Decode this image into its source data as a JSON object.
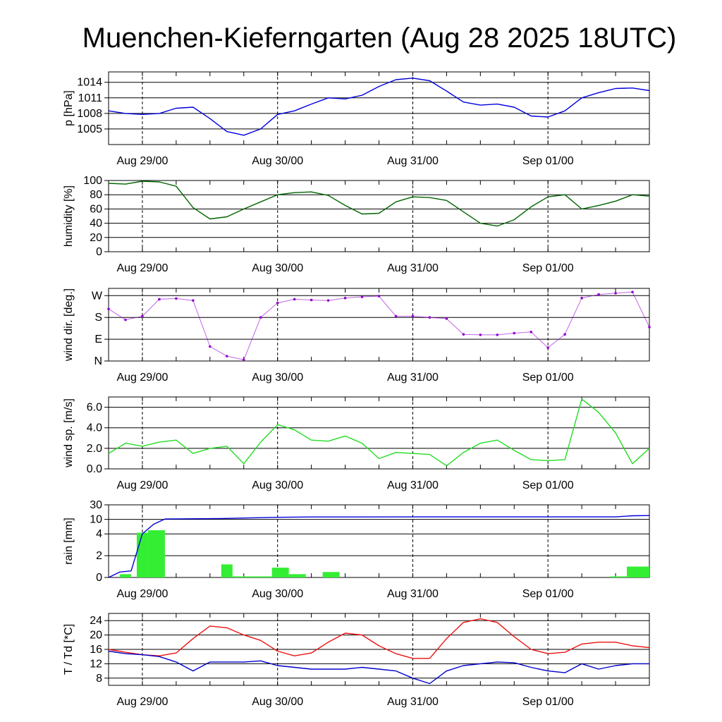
{
  "title": "Muenchen-Kieferngarten (Aug 28 2025 18UTC)",
  "x_axis": {
    "type": "time",
    "start": "Aug 28 18:00",
    "end": "Sep 01 18:00",
    "tick_labels": [
      "Aug 29/00",
      "Aug 30/00",
      "Aug 31/00",
      "Sep 01/00"
    ],
    "tick_times": [
      "Aug 29 00:00",
      "Aug 30 00:00",
      "Aug 31 00:00",
      "Sep 01 00:00"
    ]
  },
  "colors": {
    "pressure": "#0000dd",
    "humidity": "#006400",
    "wind_dir": "#9400d3",
    "wind_speed": "#22dd22",
    "rain_total": "#0000dd",
    "rain_bars": "#33ee33",
    "temperature": "#ee1111",
    "dewpoint": "#0000cc",
    "grid": "#000000"
  },
  "chart_data": [
    {
      "type": "line",
      "ylabel": "p [hPa]",
      "ylim": [
        1002,
        1016
      ],
      "yticks": [
        1005,
        1008,
        1011,
        1014
      ],
      "ytick_labels": [
        "1005",
        "1008",
        "1011",
        "1014"
      ],
      "series": [
        {
          "key": "pressure",
          "x": [
            "Aug 28 18:00",
            "Aug 28 21:00",
            "Aug 29 00:00",
            "Aug 29 03:00",
            "Aug 29 06:00",
            "Aug 29 09:00",
            "Aug 29 12:00",
            "Aug 29 15:00",
            "Aug 29 18:00",
            "Aug 29 21:00",
            "Aug 30 00:00",
            "Aug 30 03:00",
            "Aug 30 06:00",
            "Aug 30 09:00",
            "Aug 30 12:00",
            "Aug 30 15:00",
            "Aug 30 18:00",
            "Aug 30 21:00",
            "Aug 31 00:00",
            "Aug 31 03:00",
            "Aug 31 06:00",
            "Aug 31 09:00",
            "Aug 31 12:00",
            "Aug 31 15:00",
            "Aug 31 18:00",
            "Aug 31 21:00",
            "Sep 01 00:00",
            "Sep 01 03:00",
            "Sep 01 06:00",
            "Sep 01 09:00",
            "Sep 01 12:00",
            "Sep 01 15:00",
            "Sep 01 18:00"
          ],
          "y": [
            1008.5,
            1008.0,
            1007.8,
            1008.0,
            1009.0,
            1009.2,
            1007.0,
            1004.5,
            1003.8,
            1005.0,
            1007.8,
            1008.5,
            1009.8,
            1011.0,
            1010.8,
            1011.5,
            1013.2,
            1014.5,
            1014.8,
            1014.3,
            1012.3,
            1010.2,
            1009.6,
            1009.8,
            1009.2,
            1007.5,
            1007.3,
            1008.5,
            1011.0,
            1012.0,
            1012.8,
            1012.9,
            1012.4
          ]
        }
      ]
    },
    {
      "type": "line",
      "ylabel": "humidity [%]",
      "ylim": [
        0,
        100
      ],
      "yticks": [
        0,
        20,
        40,
        60,
        80,
        100
      ],
      "ytick_labels": [
        "0",
        "20",
        "40",
        "60",
        "80",
        "100"
      ],
      "series": [
        {
          "key": "humidity",
          "x": [
            "Aug 28 18:00",
            "Aug 28 21:00",
            "Aug 29 00:00",
            "Aug 29 03:00",
            "Aug 29 06:00",
            "Aug 29 09:00",
            "Aug 29 12:00",
            "Aug 29 15:00",
            "Aug 29 18:00",
            "Aug 29 21:00",
            "Aug 30 00:00",
            "Aug 30 03:00",
            "Aug 30 06:00",
            "Aug 30 09:00",
            "Aug 30 12:00",
            "Aug 30 15:00",
            "Aug 30 18:00",
            "Aug 30 21:00",
            "Aug 31 00:00",
            "Aug 31 03:00",
            "Aug 31 06:00",
            "Aug 31 09:00",
            "Aug 31 12:00",
            "Aug 31 15:00",
            "Aug 31 18:00",
            "Aug 31 21:00",
            "Sep 01 00:00",
            "Sep 01 03:00",
            "Sep 01 06:00",
            "Sep 01 09:00",
            "Sep 01 12:00",
            "Sep 01 15:00",
            "Sep 01 18:00"
          ],
          "y": [
            96,
            95,
            99,
            98,
            92,
            62,
            46,
            49,
            60,
            70,
            80,
            83,
            84,
            79,
            65,
            53,
            54,
            70,
            77,
            76,
            72,
            56,
            40,
            36,
            45,
            63,
            77,
            80,
            60,
            65,
            71,
            80,
            78
          ]
        }
      ]
    },
    {
      "type": "scatter",
      "ylabel": "wind dir. [deg.]",
      "ylim": [
        0,
        300
      ],
      "yticks": [
        0,
        90,
        180,
        270
      ],
      "ytick_labels": [
        "N",
        "E",
        "S",
        "W"
      ],
      "series": [
        {
          "key": "wind_dir",
          "x": [
            "Aug 28 18:00",
            "Aug 28 21:00",
            "Aug 29 00:00",
            "Aug 29 03:00",
            "Aug 29 06:00",
            "Aug 29 09:00",
            "Aug 29 12:00",
            "Aug 29 15:00",
            "Aug 29 18:00",
            "Aug 29 21:00",
            "Aug 30 00:00",
            "Aug 30 03:00",
            "Aug 30 06:00",
            "Aug 30 09:00",
            "Aug 30 12:00",
            "Aug 30 15:00",
            "Aug 30 18:00",
            "Aug 30 21:00",
            "Aug 31 00:00",
            "Aug 31 03:00",
            "Aug 31 06:00",
            "Aug 31 09:00",
            "Aug 31 12:00",
            "Aug 31 15:00",
            "Aug 31 18:00",
            "Aug 31 21:00",
            "Sep 01 00:00",
            "Sep 01 03:00",
            "Sep 01 06:00",
            "Sep 01 09:00",
            "Sep 01 12:00",
            "Sep 01 15:00",
            "Sep 01 18:00"
          ],
          "y": [
            215,
            170,
            185,
            255,
            258,
            250,
            60,
            20,
            5,
            180,
            240,
            255,
            252,
            250,
            260,
            265,
            268,
            185,
            185,
            180,
            175,
            110,
            108,
            108,
            115,
            120,
            55,
            110,
            260,
            275,
            280,
            285,
            140
          ]
        }
      ]
    },
    {
      "type": "line",
      "ylabel": "wind sp. [m/s]",
      "ylim": [
        0,
        7
      ],
      "yticks": [
        0,
        2,
        4,
        6
      ],
      "ytick_labels": [
        "0.0",
        "2.0",
        "4.0",
        "6.0"
      ],
      "series": [
        {
          "key": "wind_speed",
          "x": [
            "Aug 28 18:00",
            "Aug 28 21:00",
            "Aug 29 00:00",
            "Aug 29 03:00",
            "Aug 29 06:00",
            "Aug 29 09:00",
            "Aug 29 12:00",
            "Aug 29 15:00",
            "Aug 29 18:00",
            "Aug 29 21:00",
            "Aug 30 00:00",
            "Aug 30 03:00",
            "Aug 30 06:00",
            "Aug 30 09:00",
            "Aug 30 12:00",
            "Aug 30 15:00",
            "Aug 30 18:00",
            "Aug 30 21:00",
            "Aug 31 00:00",
            "Aug 31 03:00",
            "Aug 31 06:00",
            "Aug 31 09:00",
            "Aug 31 12:00",
            "Aug 31 15:00",
            "Aug 31 18:00",
            "Aug 31 21:00",
            "Sep 01 00:00",
            "Sep 01 03:00",
            "Sep 01 06:00",
            "Sep 01 09:00",
            "Sep 01 12:00",
            "Sep 01 15:00",
            "Sep 01 18:00"
          ],
          "y": [
            1.5,
            2.5,
            2.2,
            2.6,
            2.8,
            1.5,
            2.0,
            2.2,
            0.5,
            2.6,
            4.3,
            3.8,
            2.8,
            2.7,
            3.2,
            2.5,
            1.0,
            1.6,
            1.5,
            1.4,
            0.3,
            1.6,
            2.5,
            2.8,
            1.8,
            0.9,
            0.8,
            0.9,
            6.8,
            5.5,
            3.5,
            0.5,
            2.0
          ]
        }
      ]
    },
    {
      "type": "bar",
      "ylabel": "rain [mm]",
      "ylim": [
        0,
        30
      ],
      "yticks": [
        0,
        2,
        4,
        10,
        30
      ],
      "ytick_labels": [
        "0",
        "2",
        "4",
        "10",
        "30"
      ],
      "bars": {
        "key": "rain_bars",
        "start": [
          "Aug 28 20:00",
          "Aug 28 23:00",
          "Aug 29 01:00",
          "Aug 29 14:00",
          "Aug 29 16:00",
          "Aug 29 23:00",
          "Aug 30 02:00",
          "Aug 30 08:00",
          "Sep 01 11:00",
          "Sep 01 14:00"
        ],
        "end": [
          "Aug 28 22:00",
          "Aug 29 01:00",
          "Aug 29 04:00",
          "Aug 29 16:00",
          "Aug 29 23:00",
          "Aug 30 02:00",
          "Aug 30 05:00",
          "Aug 30 11:00",
          "Sep 01 14:00",
          "Sep 01 18:00"
        ],
        "values": [
          0.3,
          4.5,
          5.5,
          1.2,
          0.1,
          0.9,
          0.3,
          0.5,
          0.1,
          1.0
        ]
      },
      "series": [
        {
          "key": "rain_total",
          "x": [
            "Aug 28 18:00",
            "Aug 28 20:00",
            "Aug 28 22:00",
            "Aug 29 00:00",
            "Aug 29 02:00",
            "Aug 29 04:00",
            "Aug 29 14:00",
            "Aug 29 18:00",
            "Aug 30 00:00",
            "Aug 30 06:00",
            "Aug 31 00:00",
            "Sep 01 00:00",
            "Sep 01 12:00",
            "Sep 01 15:00",
            "Sep 01 18:00"
          ],
          "y": [
            0,
            0.5,
            0.6,
            4.0,
            8.0,
            10.5,
            11.2,
            11.8,
            12.8,
            13.3,
            13.4,
            13.4,
            13.4,
            15.0,
            15.2
          ]
        }
      ]
    },
    {
      "type": "line",
      "ylabel": "T / Td [*C]",
      "ylim": [
        6,
        26
      ],
      "yticks": [
        8,
        12,
        16,
        20,
        24
      ],
      "ytick_labels": [
        "8",
        "12",
        "16",
        "20",
        "24"
      ],
      "series": [
        {
          "key": "temperature",
          "x": [
            "Aug 28 18:00",
            "Aug 28 21:00",
            "Aug 29 00:00",
            "Aug 29 03:00",
            "Aug 29 06:00",
            "Aug 29 09:00",
            "Aug 29 12:00",
            "Aug 29 15:00",
            "Aug 29 18:00",
            "Aug 29 21:00",
            "Aug 30 00:00",
            "Aug 30 03:00",
            "Aug 30 06:00",
            "Aug 30 09:00",
            "Aug 30 12:00",
            "Aug 30 15:00",
            "Aug 30 18:00",
            "Aug 30 21:00",
            "Aug 31 00:00",
            "Aug 31 03:00",
            "Aug 31 06:00",
            "Aug 31 09:00",
            "Aug 31 12:00",
            "Aug 31 15:00",
            "Aug 31 18:00",
            "Aug 31 21:00",
            "Sep 01 00:00",
            "Sep 01 03:00",
            "Sep 01 06:00",
            "Sep 01 09:00",
            "Sep 01 12:00",
            "Sep 01 15:00",
            "Sep 01 18:00"
          ],
          "y": [
            16,
            15.2,
            14.5,
            14.2,
            15,
            19,
            22.5,
            22,
            20,
            18.5,
            15.5,
            14.2,
            15,
            18,
            20.5,
            20,
            17,
            14.8,
            13.5,
            13.5,
            19,
            23.5,
            24.5,
            23.5,
            19.5,
            16,
            14.8,
            15.2,
            17.5,
            18,
            18,
            17,
            16.5
          ]
        },
        {
          "key": "dewpoint",
          "x": [
            "Aug 28 18:00",
            "Aug 28 21:00",
            "Aug 29 00:00",
            "Aug 29 03:00",
            "Aug 29 06:00",
            "Aug 29 09:00",
            "Aug 29 12:00",
            "Aug 29 15:00",
            "Aug 29 18:00",
            "Aug 29 21:00",
            "Aug 30 00:00",
            "Aug 30 03:00",
            "Aug 30 06:00",
            "Aug 30 09:00",
            "Aug 30 12:00",
            "Aug 30 15:00",
            "Aug 30 18:00",
            "Aug 30 21:00",
            "Aug 31 00:00",
            "Aug 31 03:00",
            "Aug 31 06:00",
            "Aug 31 09:00",
            "Aug 31 12:00",
            "Aug 31 15:00",
            "Aug 31 18:00",
            "Aug 31 21:00",
            "Sep 01 00:00",
            "Sep 01 03:00",
            "Sep 01 06:00",
            "Sep 01 09:00",
            "Sep 01 12:00",
            "Sep 01 15:00",
            "Sep 01 18:00"
          ],
          "y": [
            15.5,
            14.8,
            14.5,
            14,
            12.5,
            10,
            12.5,
            12.5,
            12.5,
            12.8,
            11.5,
            11,
            10.5,
            10.5,
            10.5,
            11,
            10.5,
            10,
            8,
            6.5,
            10,
            11.5,
            12,
            12.5,
            12.3,
            11,
            10,
            9.5,
            12,
            10.5,
            11.5,
            12,
            12
          ]
        }
      ]
    }
  ]
}
